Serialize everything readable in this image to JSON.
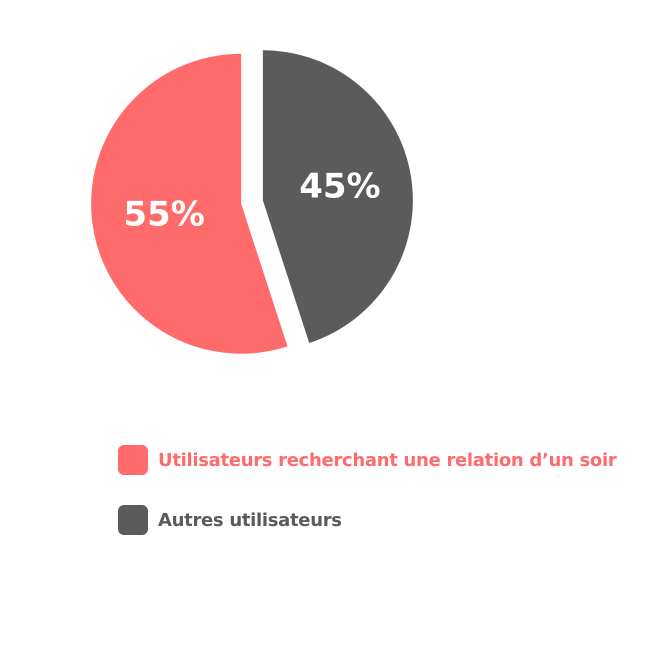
{
  "chart_data": {
    "type": "pie",
    "title": "",
    "slices": [
      {
        "label": "Utilisateurs recherchant une relation d’un soir",
        "value": 55,
        "display": "55%",
        "color": "#ff6b6b"
      },
      {
        "label": "Autres utilisateurs",
        "value": 45,
        "display": "45%",
        "color": "#5b5b5b"
      }
    ],
    "start_angle_deg": 0,
    "exploded": true,
    "legend": {
      "position": "bottom-left",
      "text_colors": [
        "#ff6b6b",
        "#5b5b5b"
      ]
    }
  }
}
